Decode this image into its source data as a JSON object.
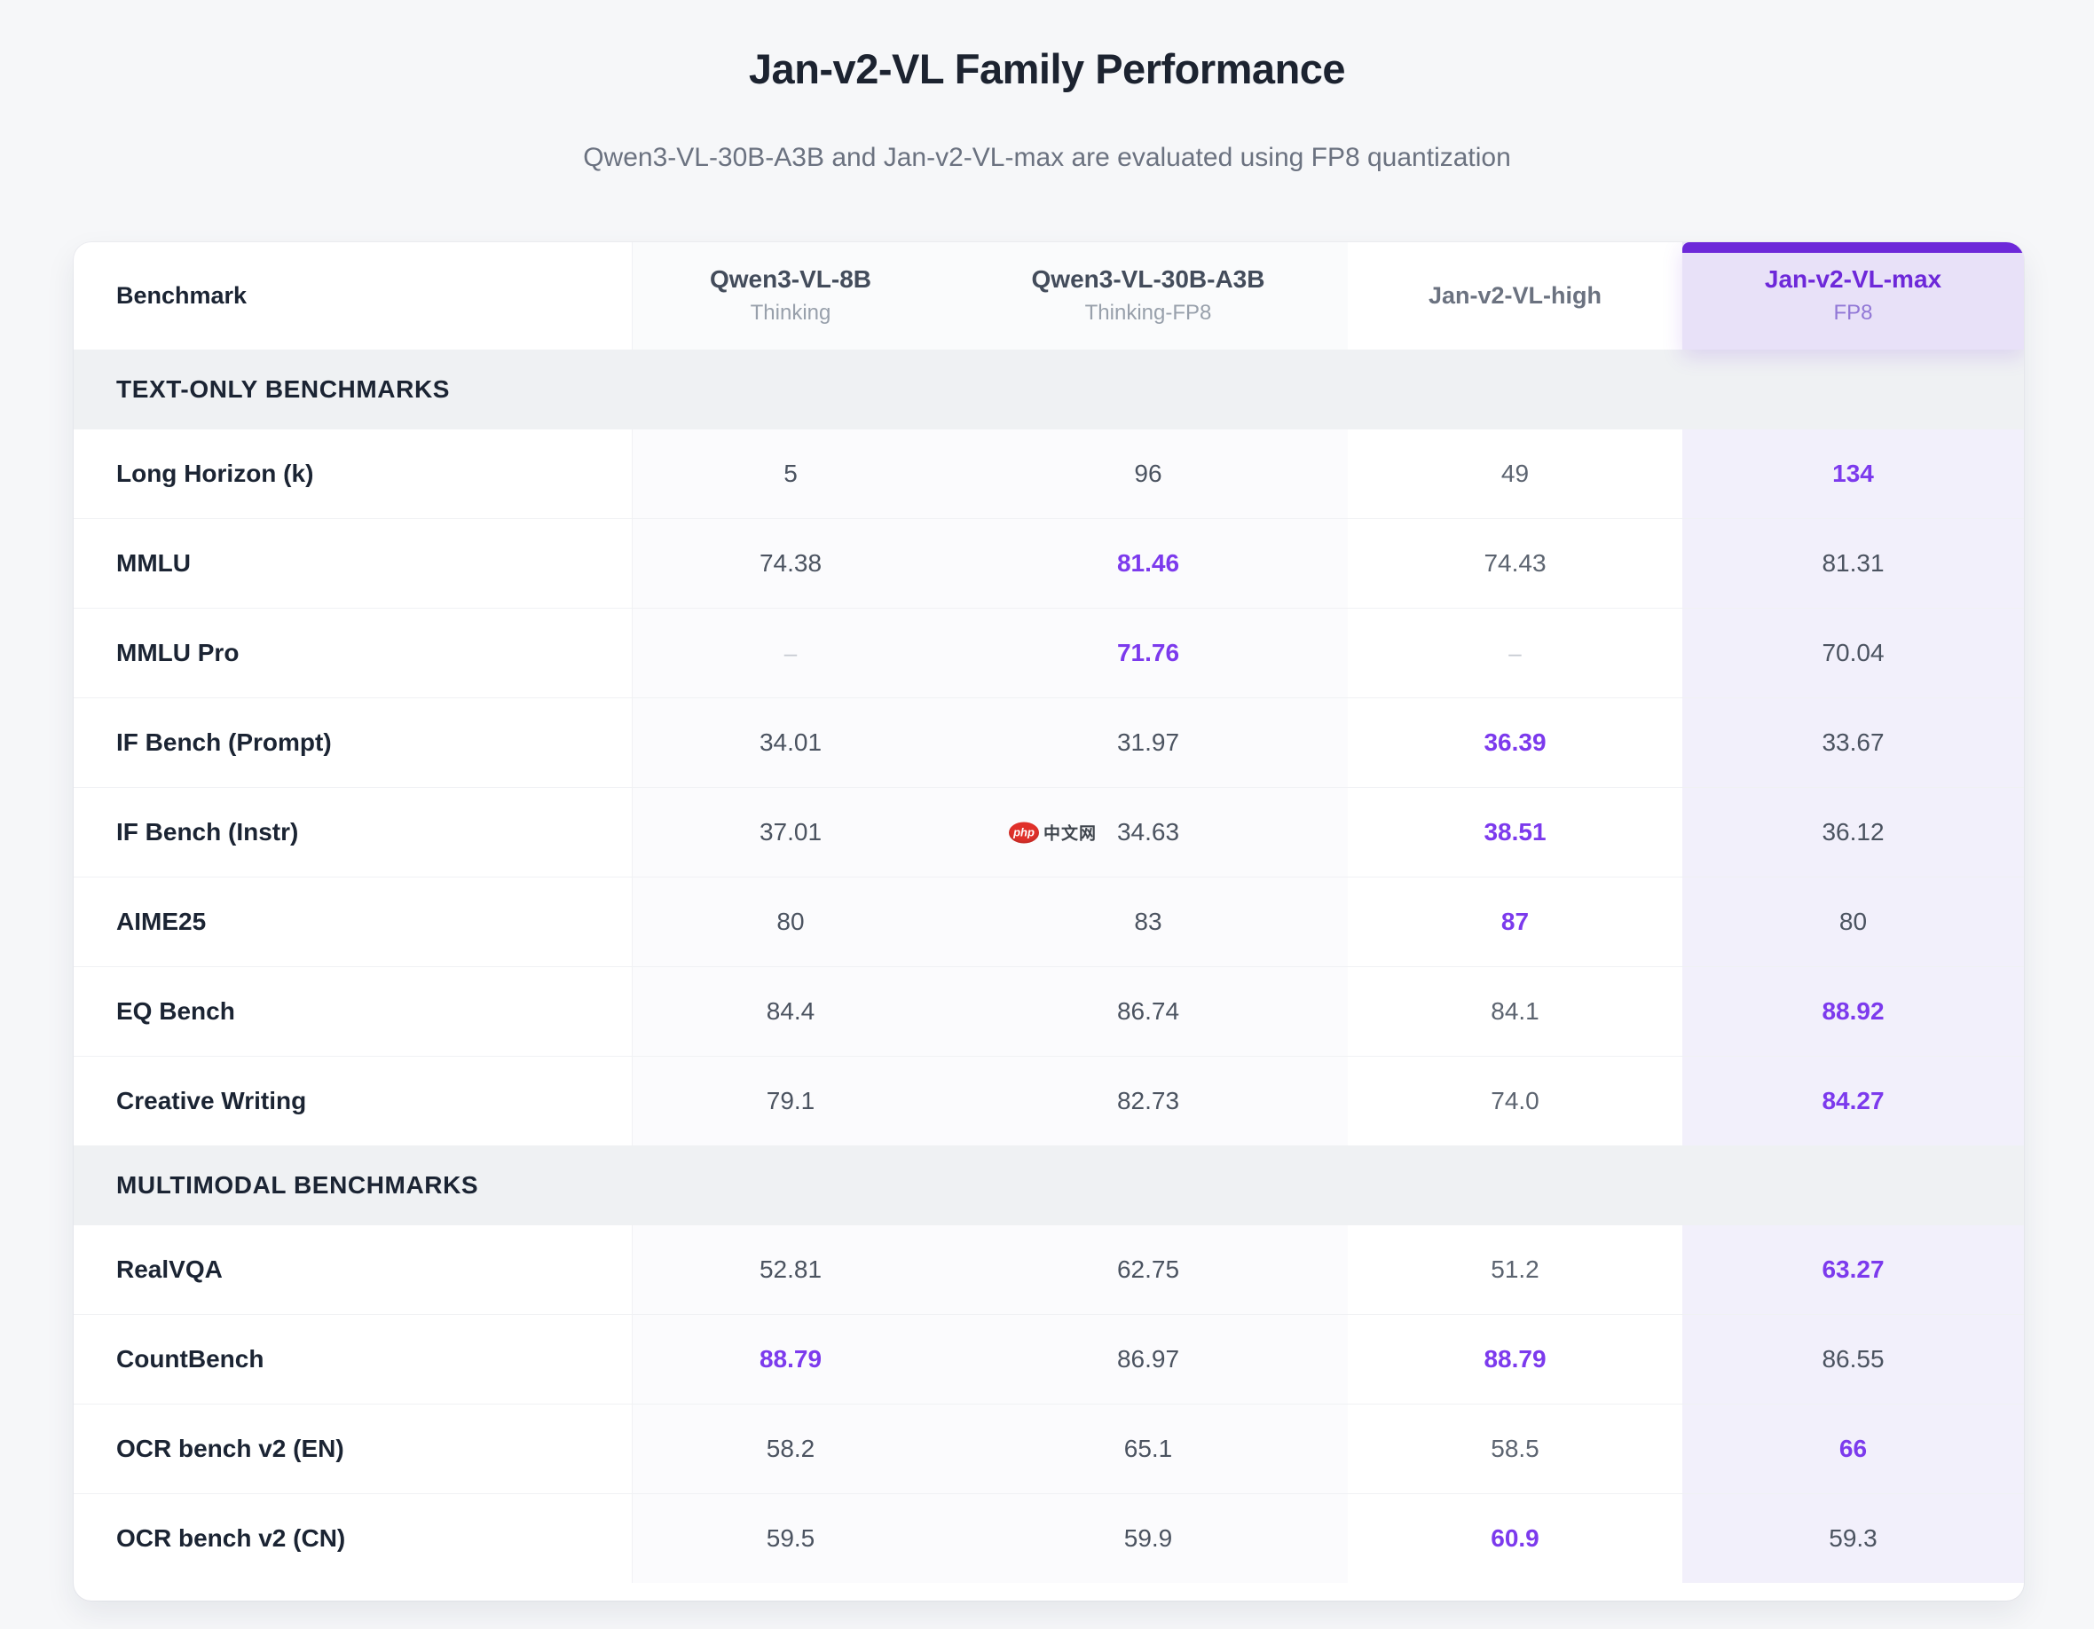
{
  "page": {
    "title": "Jan-v2-VL Family Performance",
    "subtitle": "Qwen3-VL-30B-A3B and Jan-v2-VL-max are evaluated using FP8 quantization"
  },
  "colors": {
    "accent_purple_text": "#7c3aed",
    "highlight_header_purple": "#6d28d9",
    "highlight_column_bg": "#f2f0fb",
    "highlight_header_bg": "#e8e1f8",
    "section_band_bg": "#eff1f3",
    "page_bg": "#f6f7f9",
    "card_bg": "#ffffff"
  },
  "watermark": {
    "badge": "php",
    "label": "中文网"
  },
  "table": {
    "columns": [
      {
        "label": "Benchmark",
        "sub": ""
      },
      {
        "label": "Qwen3-VL-8B",
        "sub": "Thinking"
      },
      {
        "label": "Qwen3-VL-30B-A3B",
        "sub": "Thinking-FP8"
      },
      {
        "label": "Jan-v2-VL-high",
        "sub": ""
      },
      {
        "label": "Jan-v2-VL-max",
        "sub": "FP8"
      }
    ],
    "sections": [
      {
        "title": "TEXT-ONLY BENCHMARKS",
        "rows": [
          {
            "benchmark": "Long Horizon (k)",
            "values": [
              {
                "v": "5"
              },
              {
                "v": "96"
              },
              {
                "v": "49"
              },
              {
                "v": "134",
                "hl": true
              }
            ]
          },
          {
            "benchmark": "MMLU",
            "values": [
              {
                "v": "74.38"
              },
              {
                "v": "81.46",
                "hl": true
              },
              {
                "v": "74.43"
              },
              {
                "v": "81.31"
              }
            ]
          },
          {
            "benchmark": "MMLU Pro",
            "values": [
              {
                "v": "–",
                "dash": true
              },
              {
                "v": "71.76",
                "hl": true
              },
              {
                "v": "–",
                "dash": true
              },
              {
                "v": "70.04"
              }
            ]
          },
          {
            "benchmark": "IF Bench (Prompt)",
            "values": [
              {
                "v": "34.01"
              },
              {
                "v": "31.97"
              },
              {
                "v": "36.39",
                "hl": true
              },
              {
                "v": "33.67"
              }
            ]
          },
          {
            "benchmark": "IF Bench (Instr)",
            "values": [
              {
                "v": "37.01"
              },
              {
                "v": "34.63",
                "wm": true
              },
              {
                "v": "38.51",
                "hl": true
              },
              {
                "v": "36.12"
              }
            ]
          },
          {
            "benchmark": "AIME25",
            "values": [
              {
                "v": "80"
              },
              {
                "v": "83"
              },
              {
                "v": "87",
                "hl": true
              },
              {
                "v": "80"
              }
            ]
          },
          {
            "benchmark": "EQ Bench",
            "values": [
              {
                "v": "84.4"
              },
              {
                "v": "86.74"
              },
              {
                "v": "84.1"
              },
              {
                "v": "88.92",
                "hl": true
              }
            ]
          },
          {
            "benchmark": "Creative Writing",
            "values": [
              {
                "v": "79.1"
              },
              {
                "v": "82.73"
              },
              {
                "v": "74.0"
              },
              {
                "v": "84.27",
                "hl": true
              }
            ]
          }
        ]
      },
      {
        "title": "MULTIMODAL BENCHMARKS",
        "rows": [
          {
            "benchmark": "RealVQA",
            "values": [
              {
                "v": "52.81"
              },
              {
                "v": "62.75"
              },
              {
                "v": "51.2"
              },
              {
                "v": "63.27",
                "hl": true
              }
            ]
          },
          {
            "benchmark": "CountBench",
            "values": [
              {
                "v": "88.79",
                "hl": true
              },
              {
                "v": "86.97"
              },
              {
                "v": "88.79",
                "hl": true
              },
              {
                "v": "86.55"
              }
            ]
          },
          {
            "benchmark": "OCR bench v2 (EN)",
            "values": [
              {
                "v": "58.2"
              },
              {
                "v": "65.1"
              },
              {
                "v": "58.5"
              },
              {
                "v": "66",
                "hl": true
              }
            ]
          },
          {
            "benchmark": "OCR bench v2 (CN)",
            "values": [
              {
                "v": "59.5"
              },
              {
                "v": "59.9"
              },
              {
                "v": "60.9",
                "hl": true
              },
              {
                "v": "59.3"
              }
            ]
          }
        ]
      }
    ]
  }
}
